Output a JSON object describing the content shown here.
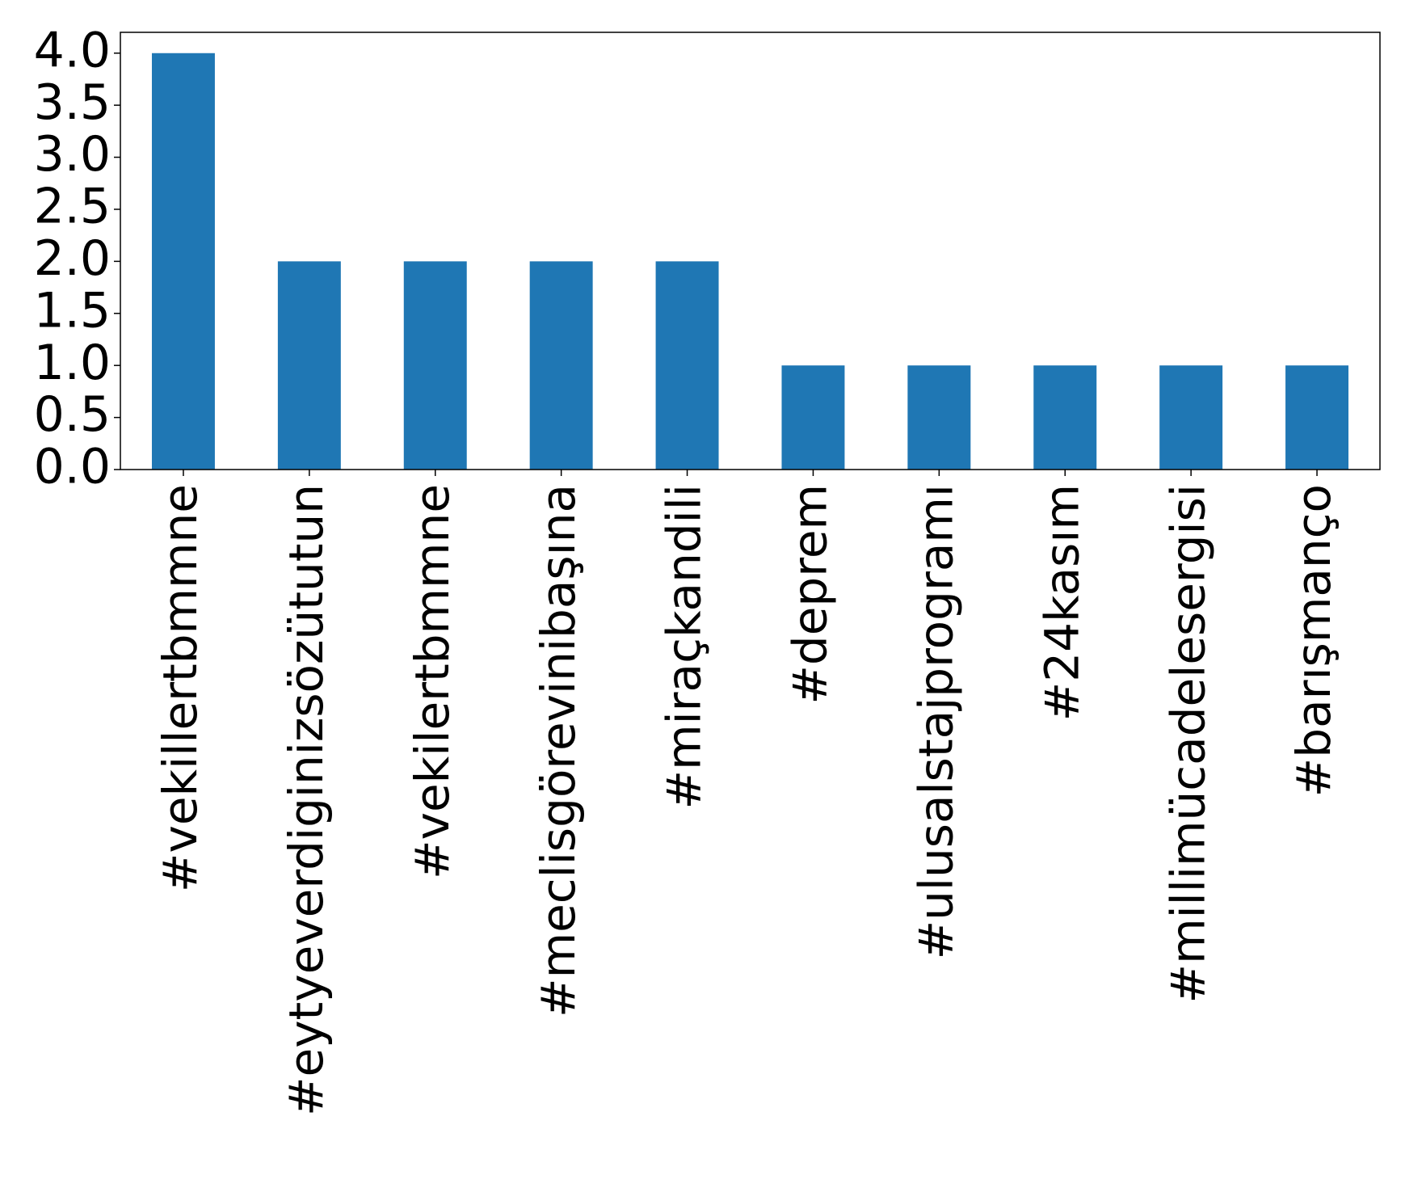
{
  "chart_data": {
    "type": "bar",
    "categories": [
      "#vekillertbmmne",
      "#eytyeverdiginizsözütutun",
      "#vekilertbmmne",
      "#meclisgörevinibaşına",
      "#miraçkandili",
      "#deprem",
      "#ulusalstajprogramı",
      "#24kasım",
      "#millimücadelesergisi",
      "#barışmanço"
    ],
    "values": [
      4,
      2,
      2,
      2,
      2,
      1,
      1,
      1,
      1,
      1
    ],
    "color": "#1f77b4",
    "ylim": [
      0,
      4.2
    ],
    "yticks": [
      {
        "value": 0,
        "label": "0.0"
      },
      0.5,
      {
        "value": 1,
        "label": "1.0"
      },
      1.5,
      {
        "value": 2,
        "label": "2.0"
      },
      2.5,
      {
        "value": 3,
        "label": "3.0"
      },
      3.5,
      {
        "value": 4,
        "label": "4.0"
      }
    ],
    "grid": false
  }
}
